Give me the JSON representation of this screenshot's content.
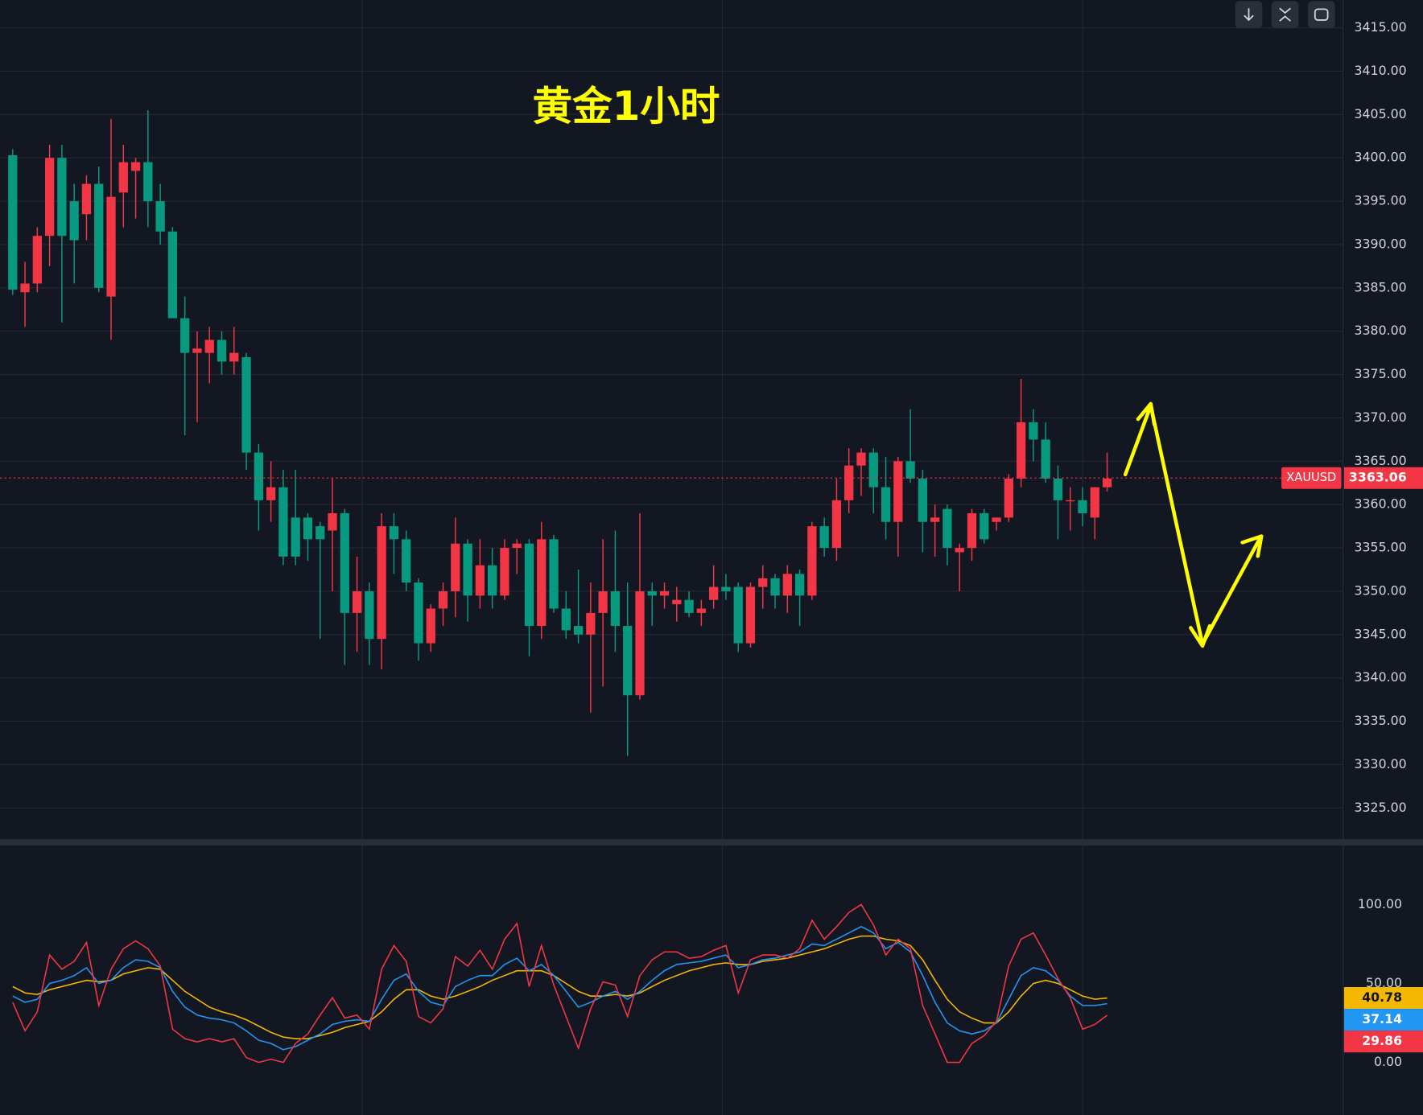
{
  "chart_data": [
    {
      "type": "candlestick",
      "title": "黄金1小时",
      "symbol": "XAUUSD",
      "last_price": 3363.06,
      "up_color": "#f23645",
      "down_color": "#089981",
      "ylim": [
        3321.4,
        3418.2
      ],
      "yticks": [
        {
          "value": 3325,
          "label": "3325.00"
        },
        {
          "value": 3330,
          "label": "3330.00"
        },
        {
          "value": 3335,
          "label": "3335.00"
        },
        {
          "value": 3340,
          "label": "3340.00"
        },
        {
          "value": 3345,
          "label": "3345.00"
        },
        {
          "value": 3350,
          "label": "3350.00"
        },
        {
          "value": 3355,
          "label": "3355.00"
        },
        {
          "value": 3360,
          "label": "3360.00"
        },
        {
          "value": 3365,
          "label": "3365.00"
        },
        {
          "value": 3370,
          "label": "3370.00"
        },
        {
          "value": 3375,
          "label": "3375.00"
        },
        {
          "value": 3380,
          "label": "3380.00"
        },
        {
          "value": 3385,
          "label": "3385.00"
        },
        {
          "value": 3390,
          "label": "3390.00"
        },
        {
          "value": 3395,
          "label": "3395.00"
        },
        {
          "value": 3400,
          "label": "3400.00"
        },
        {
          "value": 3405,
          "label": "3405.00"
        },
        {
          "value": 3410,
          "label": "3410.00"
        },
        {
          "value": 3415,
          "label": "3415.00"
        }
      ],
      "grid": true,
      "open": [
        3400.3,
        3384.5,
        3385.5,
        3391,
        3400,
        3395,
        3393.5,
        3397,
        3384,
        3396,
        3398.5,
        3399.5,
        3395,
        3391.5,
        3381.5,
        3377.5,
        3377.5,
        3379,
        3376.5,
        3377,
        3366,
        3360.5,
        3362,
        3358.5,
        3358.5,
        3357.5,
        3357,
        3359,
        3347.5,
        3350,
        3344.5,
        3357.5,
        3356,
        3351,
        3344,
        3348,
        3350,
        3355.5,
        3349.5,
        3353,
        3349.5,
        3355,
        3355.5,
        3346,
        3356,
        3348,
        3346,
        3345,
        3347.5,
        3350,
        3346,
        3338,
        3350,
        3349.5,
        3348.5,
        3349,
        3347.5,
        3349,
        3350.5,
        3350.5,
        3344,
        3350.5,
        3351.5,
        3349.5,
        3352,
        3349.5,
        3357.5,
        3355,
        3360.5,
        3364.5,
        3366,
        3362,
        3358,
        3365,
        3363,
        3358,
        3359.5,
        3354.5,
        3355,
        3359,
        3358,
        3358.5,
        3363,
        3369.5,
        3367.5,
        3363,
        3360.5,
        3360.5,
        3358.5,
        3362
      ],
      "high": [
        3401,
        3388,
        3392,
        3401.5,
        3401.5,
        3397,
        3398,
        3399,
        3404.5,
        3401.5,
        3400,
        3405.5,
        3397,
        3392,
        3384,
        3380,
        3380.5,
        3380,
        3380.5,
        3377.5,
        3367,
        3365,
        3364,
        3364,
        3359,
        3358,
        3363,
        3359.5,
        3354,
        3351,
        3359,
        3359,
        3357,
        3351.5,
        3348.5,
        3351,
        3358.5,
        3356,
        3356,
        3355,
        3356,
        3356,
        3356,
        3358,
        3356.5,
        3350,
        3352.5,
        3351,
        3356,
        3357,
        3351,
        3359,
        3351,
        3351,
        3350.5,
        3350,
        3349,
        3353,
        3352,
        3351,
        3351,
        3353,
        3352,
        3353,
        3352.5,
        3358,
        3358.5,
        3363,
        3366.5,
        3366.5,
        3366.5,
        3365.5,
        3365.5,
        3371,
        3364,
        3360,
        3360,
        3355.5,
        3359.5,
        3359.5,
        3358.5,
        3363.5,
        3374.5,
        3371,
        3369.5,
        3364.5,
        3362,
        3362,
        3362,
        3366
      ],
      "low": [
        3384.2,
        3380.5,
        3384.5,
        3387.5,
        3381,
        3385.5,
        3390.5,
        3384.5,
        3379,
        3392,
        3393,
        3392,
        3390,
        3381.5,
        3368,
        3369.5,
        3374,
        3375,
        3375,
        3364,
        3357,
        3358,
        3353,
        3353,
        3353.5,
        3344.5,
        3350,
        3341.5,
        3343,
        3341.5,
        3341,
        3352,
        3350,
        3342,
        3343,
        3346,
        3347,
        3346.5,
        3348,
        3348,
        3349,
        3352,
        3342.5,
        3344.5,
        3347.5,
        3344.5,
        3344,
        3336,
        3339,
        3343,
        3331,
        3337.5,
        3346,
        3348,
        3346.5,
        3347,
        3346,
        3348,
        3349,
        3343,
        3343.5,
        3348,
        3348,
        3347.5,
        3346,
        3349,
        3354,
        3353.5,
        3359,
        3361,
        3359,
        3356,
        3354,
        3362.5,
        3354.5,
        3354,
        3353,
        3350,
        3353.5,
        3355.5,
        3357,
        3358,
        3362,
        3365,
        3362.5,
        3356,
        3357,
        3357.5,
        3356,
        3361.5
      ],
      "close": [
        3384.8,
        3385.5,
        3391,
        3400,
        3391,
        3390.5,
        3397,
        3385,
        3395.5,
        3399.5,
        3399.5,
        3395,
        3391.5,
        3381.5,
        3377.5,
        3378,
        3379,
        3376.5,
        3377.5,
        3366,
        3360.5,
        3362,
        3354,
        3354,
        3356,
        3356,
        3359,
        3347.5,
        3350,
        3344.5,
        3357.5,
        3356,
        3351,
        3344,
        3348,
        3350,
        3355.5,
        3349.5,
        3353,
        3349.5,
        3355,
        3355.5,
        3346,
        3356,
        3348,
        3345.5,
        3345,
        3347.5,
        3350,
        3346,
        3338,
        3350,
        3349.5,
        3350,
        3349,
        3347.5,
        3348,
        3350.5,
        3350,
        3344,
        3350.5,
        3351.5,
        3349.5,
        3352,
        3349.5,
        3357.5,
        3355,
        3360.5,
        3364.5,
        3366,
        3362,
        3358,
        3365,
        3363,
        3358,
        3358.5,
        3355,
        3355,
        3359,
        3356,
        3358.5,
        3363,
        3369.5,
        3367.5,
        3363,
        3360.5,
        3360.5,
        3359,
        3362,
        3363
      ]
    },
    {
      "type": "line",
      "ylim": [
        -33.3,
        137.4
      ],
      "yticks": [
        {
          "value": 0,
          "label": "0.00"
        },
        {
          "value": 50,
          "label": "50.00"
        },
        {
          "value": 100,
          "label": "100.00"
        }
      ],
      "series": [
        {
          "color": "#f5b800",
          "values": [
            48,
            44,
            43,
            46,
            48,
            50,
            52,
            51,
            52,
            56,
            58,
            60,
            59,
            52,
            45,
            40,
            35,
            32,
            30,
            27,
            23,
            19,
            16,
            15,
            15,
            17,
            19,
            22,
            24,
            26,
            32,
            40,
            46,
            46,
            42,
            40,
            42,
            45,
            48,
            52,
            55,
            58,
            58,
            58,
            55,
            50,
            45,
            42,
            42,
            43,
            42,
            44,
            48,
            52,
            55,
            58,
            60,
            62,
            63,
            62,
            62,
            64,
            65,
            66,
            68,
            70,
            72,
            75,
            78,
            80,
            80,
            78,
            77,
            74,
            65,
            52,
            40,
            32,
            28,
            25,
            25,
            32,
            42,
            50,
            52,
            50,
            46,
            42,
            40,
            40.78
          ]
        },
        {
          "color": "#2196f3",
          "values": [
            42,
            38,
            40,
            50,
            52,
            55,
            60,
            50,
            52,
            60,
            65,
            64,
            60,
            45,
            35,
            30,
            28,
            27,
            25,
            20,
            14,
            12,
            8,
            10,
            14,
            18,
            24,
            26,
            27,
            26,
            40,
            52,
            56,
            45,
            38,
            36,
            48,
            52,
            55,
            55,
            62,
            66,
            58,
            62,
            55,
            45,
            35,
            38,
            42,
            45,
            40,
            45,
            52,
            58,
            62,
            63,
            64,
            66,
            68,
            60,
            62,
            65,
            66,
            68,
            70,
            75,
            74,
            78,
            82,
            86,
            82,
            72,
            76,
            70,
            55,
            38,
            25,
            20,
            18,
            20,
            25,
            40,
            55,
            60,
            58,
            52,
            42,
            36,
            36,
            37.14
          ]
        },
        {
          "color": "#f23645",
          "values": [
            38,
            20,
            32,
            68,
            59,
            64,
            76,
            36,
            59,
            72,
            77,
            72,
            61,
            21,
            15,
            13,
            15,
            13,
            15,
            3,
            0,
            2,
            0,
            12,
            18,
            30,
            41,
            28,
            30,
            21,
            59,
            74,
            64,
            29,
            25,
            34,
            67,
            61,
            71,
            59,
            78,
            88,
            48,
            74,
            49,
            29,
            9,
            34,
            51,
            49,
            29,
            55,
            65,
            70,
            70,
            66,
            67,
            71,
            74,
            44,
            65,
            68,
            68,
            66,
            72,
            90,
            78,
            86,
            95,
            100,
            87,
            68,
            78,
            72,
            36,
            18,
            0,
            0,
            12,
            17,
            26,
            61,
            78,
            82,
            68,
            53,
            41,
            21,
            24,
            29.86
          ]
        }
      ]
    }
  ]
}
